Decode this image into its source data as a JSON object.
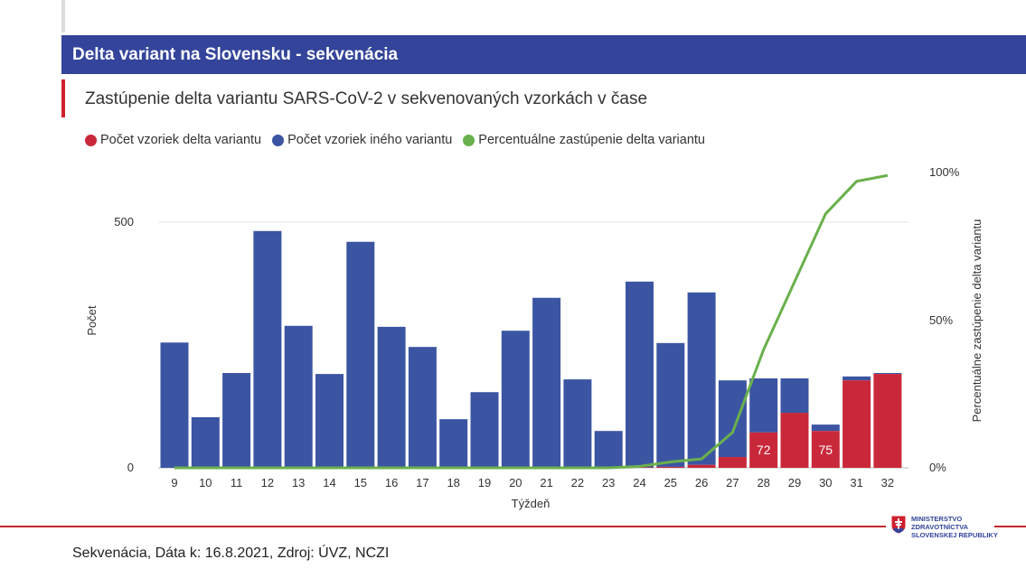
{
  "header": {
    "title": "Delta variant na Slovensku - sekvenácia"
  },
  "subtitle": "Zastúpenie delta variantu SARS-CoV-2 v sekvenovaných vzorkách v čase",
  "footer": {
    "source": "Sekvenácia, Dáta k: 16.8.2021, Zdroj: ÚVZ, NCZI",
    "logo_lines": [
      "MINISTERSTVO",
      "ZDRAVOTNÍCTVA",
      "SLOVENSKEJ REPUBLIKY"
    ]
  },
  "chart_data": {
    "type": "bar",
    "title": "Zastúpenie delta variantu SARS-CoV-2 v sekvenovaných vzorkách v čase",
    "xlabel": "Týždeň",
    "ylabel": "Počet",
    "y2label": "Percentuálne zastúpenie delta variantu",
    "ylim": [
      0,
      600
    ],
    "y2lim": [
      0,
      100
    ],
    "yticks": [
      "0",
      "500"
    ],
    "y2ticks": [
      "0%",
      "50%",
      "100%"
    ],
    "categories": [
      "9",
      "10",
      "11",
      "12",
      "13",
      "14",
      "15",
      "16",
      "17",
      "18",
      "19",
      "20",
      "21",
      "22",
      "23",
      "24",
      "25",
      "26",
      "27",
      "28",
      "29",
      "30",
      "31",
      "32"
    ],
    "colors": {
      "delta": "#c9283a",
      "other": "#3b55a3",
      "percent": "#6ab04c"
    },
    "series": [
      {
        "name": "Počet vzoriek delta variantu",
        "type": "bar",
        "values": [
          0,
          0,
          0,
          0,
          0,
          0,
          0,
          0,
          0,
          0,
          0,
          0,
          0,
          0,
          0,
          1,
          2,
          6,
          22,
          72,
          112,
          75,
          178,
          191
        ]
      },
      {
        "name": "Počet vzoriek iného variantu",
        "type": "bar",
        "values": [
          255,
          103,
          193,
          482,
          289,
          191,
          460,
          287,
          246,
          99,
          154,
          279,
          346,
          180,
          75,
          378,
          252,
          351,
          156,
          110,
          70,
          13,
          8,
          2
        ]
      },
      {
        "name": "Percentuálne zastúpenie delta variantu",
        "type": "line",
        "values": [
          0,
          0,
          0,
          0,
          0,
          0,
          0,
          0,
          0,
          0,
          0,
          0,
          0,
          0,
          0,
          0.5,
          2,
          3,
          12,
          40,
          63,
          86,
          97,
          99
        ]
      }
    ],
    "data_labels": [
      {
        "category": "28",
        "value": "72"
      },
      {
        "category": "30",
        "value": "75"
      }
    ],
    "legend": "top-left"
  }
}
